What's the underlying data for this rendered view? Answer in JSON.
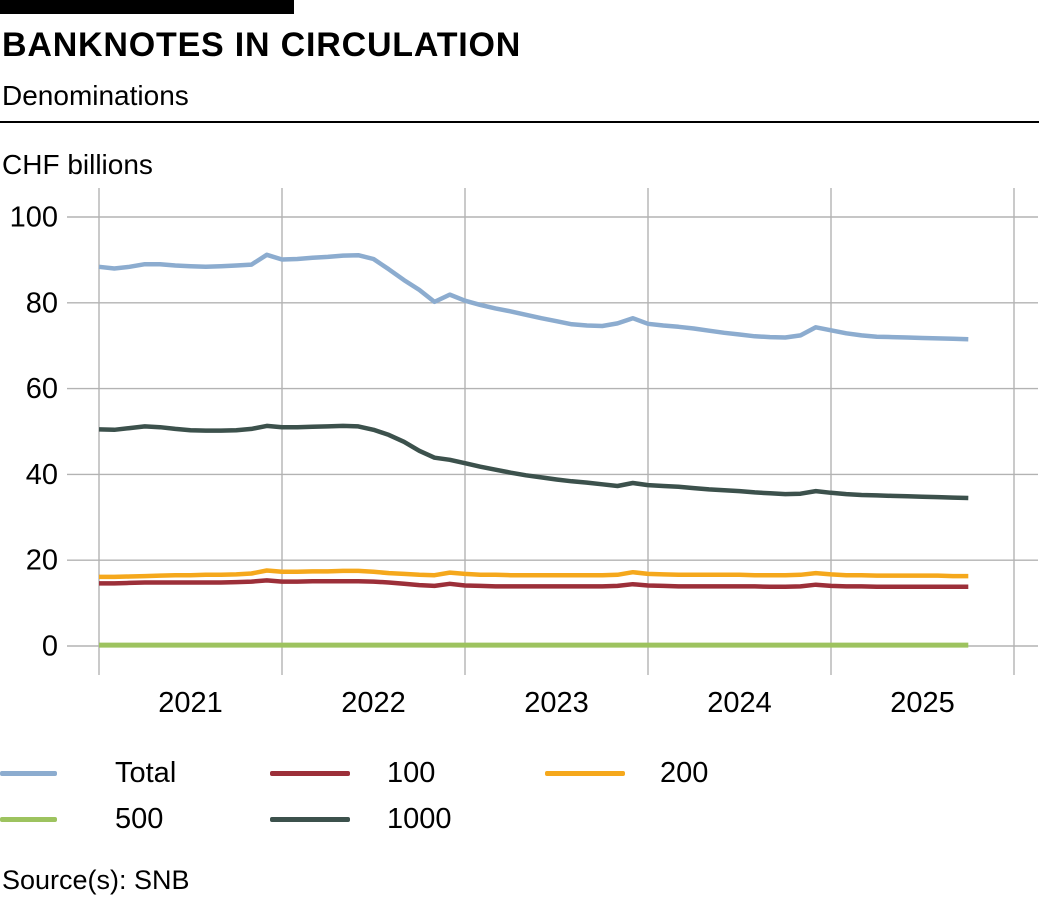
{
  "header": {
    "title": "BANKNOTES IN CIRCULATION",
    "subtitle": "Denominations"
  },
  "y_axis_unit": "CHF billions",
  "source": "Source(s): SNB",
  "chart_data": {
    "type": "line",
    "title": "BANKNOTES IN CIRCULATION",
    "subtitle": "Denominations",
    "ylabel": "CHF billions",
    "xlabel": "",
    "grid": true,
    "legend_position": "bottom",
    "ylim": [
      0,
      100
    ],
    "y_ticks": [
      0,
      20,
      40,
      60,
      80,
      100
    ],
    "x_tick_labels": [
      "2021",
      "2022",
      "2023",
      "2024",
      "2025"
    ],
    "x_range": {
      "start": "2021-01",
      "end": "2025-10",
      "interval": "monthly"
    },
    "grid_color": "#b3b3b3",
    "series": [
      {
        "name": "Total",
        "color": "#8CACCF",
        "values": [
          88.4,
          88.0,
          88.4,
          89.0,
          89.0,
          88.7,
          88.5,
          88.4,
          88.5,
          88.7,
          88.9,
          91.2,
          90.1,
          90.2,
          90.5,
          90.7,
          91.0,
          91.1,
          90.2,
          87.8,
          85.3,
          83.0,
          80.2,
          81.9,
          80.5,
          79.5,
          78.7,
          78.0,
          77.2,
          76.4,
          75.7,
          75.0,
          74.7,
          74.6,
          75.2,
          76.4,
          75.1,
          74.7,
          74.4,
          74.0,
          73.5,
          73.0,
          72.6,
          72.2,
          72.0,
          71.9,
          72.4,
          74.3,
          73.6,
          72.9,
          72.4,
          72.1,
          72.0,
          71.9,
          71.8,
          71.7,
          71.6,
          71.5
        ]
      },
      {
        "name": "100",
        "color": "#9C2F39",
        "values": [
          14.6,
          14.6,
          14.7,
          14.8,
          14.8,
          14.8,
          14.8,
          14.8,
          14.8,
          14.9,
          15.0,
          15.3,
          15.0,
          15.0,
          15.1,
          15.1,
          15.1,
          15.1,
          15.0,
          14.8,
          14.5,
          14.2,
          14.0,
          14.5,
          14.1,
          14.0,
          13.9,
          13.9,
          13.9,
          13.9,
          13.9,
          13.9,
          13.9,
          13.9,
          14.0,
          14.4,
          14.1,
          14.0,
          13.9,
          13.9,
          13.9,
          13.9,
          13.9,
          13.9,
          13.8,
          13.8,
          13.9,
          14.3,
          14.0,
          13.9,
          13.9,
          13.8,
          13.8,
          13.8,
          13.8,
          13.8,
          13.8,
          13.8
        ]
      },
      {
        "name": "200",
        "color": "#F5A81C",
        "values": [
          16.1,
          16.1,
          16.2,
          16.3,
          16.4,
          16.5,
          16.5,
          16.6,
          16.6,
          16.7,
          16.9,
          17.6,
          17.3,
          17.3,
          17.4,
          17.4,
          17.5,
          17.5,
          17.3,
          17.0,
          16.8,
          16.6,
          16.5,
          17.1,
          16.8,
          16.6,
          16.6,
          16.5,
          16.5,
          16.5,
          16.5,
          16.5,
          16.5,
          16.5,
          16.6,
          17.2,
          16.8,
          16.7,
          16.6,
          16.6,
          16.6,
          16.6,
          16.6,
          16.5,
          16.5,
          16.5,
          16.6,
          17.0,
          16.7,
          16.5,
          16.5,
          16.4,
          16.4,
          16.4,
          16.4,
          16.4,
          16.3,
          16.3
        ]
      },
      {
        "name": "500",
        "color": "#9DC35F",
        "values": [
          0.2,
          0.2,
          0.2,
          0.2,
          0.2,
          0.2,
          0.2,
          0.2,
          0.2,
          0.2,
          0.2,
          0.2,
          0.2,
          0.2,
          0.2,
          0.2,
          0.2,
          0.2,
          0.2,
          0.2,
          0.2,
          0.2,
          0.2,
          0.2,
          0.2,
          0.2,
          0.2,
          0.2,
          0.2,
          0.2,
          0.2,
          0.2,
          0.2,
          0.2,
          0.2,
          0.2,
          0.2,
          0.2,
          0.2,
          0.2,
          0.2,
          0.2,
          0.2,
          0.2,
          0.2,
          0.2,
          0.2,
          0.2,
          0.2,
          0.2,
          0.2,
          0.2,
          0.2,
          0.2,
          0.2,
          0.2,
          0.2,
          0.2
        ]
      },
      {
        "name": "1000",
        "color": "#3C514C",
        "values": [
          50.5,
          50.4,
          50.8,
          51.2,
          51.0,
          50.6,
          50.3,
          50.2,
          50.2,
          50.3,
          50.6,
          51.3,
          51.0,
          51.0,
          51.1,
          51.2,
          51.3,
          51.2,
          50.4,
          49.2,
          47.6,
          45.5,
          43.9,
          43.4,
          42.6,
          41.8,
          41.1,
          40.4,
          39.8,
          39.3,
          38.8,
          38.4,
          38.1,
          37.7,
          37.3,
          38.0,
          37.5,
          37.3,
          37.1,
          36.8,
          36.5,
          36.3,
          36.1,
          35.8,
          35.6,
          35.4,
          35.5,
          36.1,
          35.7,
          35.4,
          35.2,
          35.1,
          35.0,
          34.9,
          34.8,
          34.7,
          34.6,
          34.5
        ]
      }
    ]
  }
}
